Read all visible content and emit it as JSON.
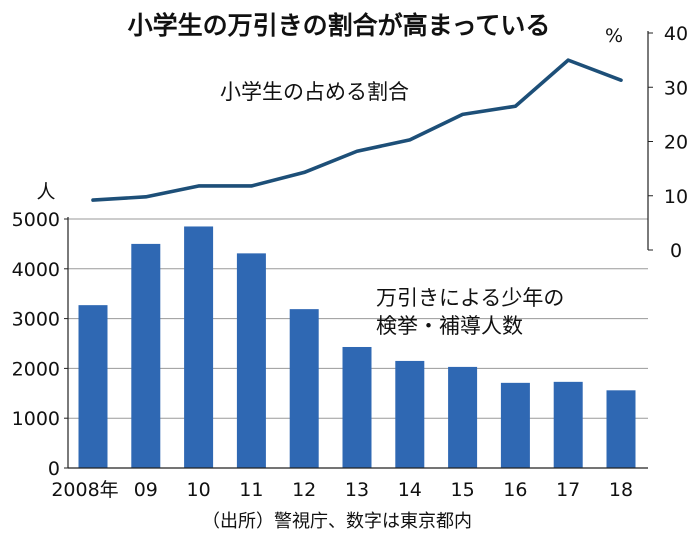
{
  "chart_data": {
    "title": "小学生の万引きの割合が高まっている",
    "source": "（出所）警視庁、数字は東京都内",
    "categories": [
      "2008年",
      "09",
      "10",
      "11",
      "12",
      "13",
      "14",
      "15",
      "16",
      "17",
      "18"
    ],
    "bar_series": {
      "name": "万引きによる少年の検挙・補導人数",
      "name_lines": [
        "万引きによる少年の",
        "検挙・補導人数"
      ],
      "type": "bar",
      "unit": "人",
      "axis": "left",
      "ylim": [
        0,
        5000
      ],
      "ticks": [
        0,
        1000,
        2000,
        3000,
        4000,
        5000
      ],
      "values": [
        3270,
        4500,
        4850,
        4310,
        3190,
        2430,
        2150,
        2030,
        1710,
        1730,
        1560
      ],
      "color": "#2f68b3"
    },
    "line_series": {
      "name": "小学生の占める割合",
      "type": "line",
      "unit": "%",
      "axis": "right",
      "ylim": [
        0,
        40
      ],
      "ticks": [
        0,
        10,
        20,
        30,
        40
      ],
      "values": [
        9.2,
        9.8,
        11.8,
        11.8,
        14.3,
        18.2,
        20.3,
        25,
        26.5,
        35,
        31.3
      ],
      "color": "#1d4f78"
    },
    "grid": true
  }
}
